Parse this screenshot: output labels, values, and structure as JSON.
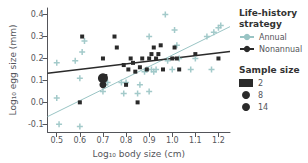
{
  "chart_data": {
    "type": "scatter",
    "xlabel": "Log₁₀ body size (cm)",
    "ylabel": "Log₁₀ egg size (mm)",
    "xlim": [
      0.46,
      1.25
    ],
    "ylim": [
      -0.135,
      0.43
    ],
    "xticks": [
      0.5,
      0.6,
      0.7,
      0.8,
      0.9,
      {
        "value": 1.0,
        "label": "1.0"
      },
      1.1,
      1.2
    ],
    "yticks": [
      -0.1,
      {
        "value": 0.0,
        "label": "0.0"
      },
      0.1,
      0.2,
      0.3,
      0.4
    ],
    "grid": false,
    "legends": [
      {
        "title": "Life-history\nstrategy",
        "entries": [
          "Annual",
          "Nonannual"
        ]
      },
      {
        "title": "Sample size",
        "entries": [
          "2",
          "8",
          "14"
        ]
      }
    ],
    "series": [
      {
        "name": "Annual",
        "type": "line",
        "color": "#99c4c4",
        "x": [
          0.46,
          1.25
        ],
        "values": [
          -0.065,
          0.345
        ]
      },
      {
        "name": "Nonannual",
        "type": "line",
        "color": "#2a2a2a",
        "x": [
          0.46,
          1.25
        ],
        "values": [
          0.133,
          0.232
        ]
      },
      {
        "type": "scatter",
        "color": "#99c4c4",
        "marker": "plus",
        "points": [
          [
            0.5,
            0.02
          ],
          [
            0.5,
            0.18
          ],
          [
            0.51,
            -0.1
          ],
          [
            0.58,
            0.19
          ],
          [
            0.6,
            -0.11
          ],
          [
            0.6,
            0.11
          ],
          [
            0.61,
            0.23
          ],
          [
            0.62,
            0.28
          ],
          [
            0.7,
            0.05
          ],
          [
            0.71,
            0.08
          ],
          [
            0.72,
            0.09
          ],
          [
            0.78,
            0.09
          ],
          [
            0.79,
            0.04
          ],
          [
            0.8,
            0.09
          ],
          [
            0.85,
            0.04
          ],
          [
            0.86,
            0.08
          ],
          [
            0.88,
            0.14
          ],
          [
            0.89,
            0.15
          ],
          [
            0.9,
            0.05
          ],
          [
            0.9,
            0.3
          ],
          [
            0.91,
            0.15
          ],
          [
            0.92,
            0.14
          ],
          [
            0.93,
            0.15
          ],
          [
            0.98,
            0.19
          ],
          [
            1.0,
            0.15
          ],
          [
            1.01,
            0.33
          ],
          [
            1.02,
            0.26
          ],
          [
            1.03,
            0.2
          ],
          [
            1.08,
            0.15
          ],
          [
            1.1,
            0.2
          ],
          [
            1.18,
            0.32
          ],
          [
            1.2,
            0.34
          ],
          [
            1.21,
            0.35
          ],
          [
            0.97,
            0.4
          ],
          [
            1.15,
            0.3
          ],
          [
            1.17,
            0.15
          ]
        ]
      },
      {
        "name": "2",
        "type": "scatter",
        "color": "#2a2a2a",
        "marker": "square",
        "points": [
          [
            0.6,
            0.0
          ],
          [
            0.61,
            0.3
          ],
          [
            0.7,
            0.2
          ],
          [
            0.71,
            0.12
          ],
          [
            0.75,
            0.3
          ],
          [
            0.76,
            0.25
          ],
          [
            0.79,
            0.17
          ],
          [
            0.8,
            0.08
          ],
          [
            0.81,
            0.15
          ],
          [
            0.82,
            0.2
          ],
          [
            0.83,
            0.18
          ],
          [
            0.84,
            0.14
          ],
          [
            0.85,
            0.0
          ],
          [
            0.86,
            0.16
          ],
          [
            0.87,
            0.2
          ],
          [
            0.89,
            0.15
          ],
          [
            0.9,
            0.2
          ],
          [
            0.91,
            0.22
          ],
          [
            0.92,
            0.25
          ],
          [
            0.93,
            0.2
          ],
          [
            0.94,
            0.22
          ],
          [
            0.95,
            0.26
          ],
          [
            0.96,
            0.15
          ],
          [
            1.0,
            0.2
          ],
          [
            1.01,
            0.25
          ],
          [
            1.02,
            0.2
          ],
          [
            1.03,
            0.15
          ],
          [
            1.1,
            0.22
          ],
          [
            1.2,
            0.2
          ]
        ]
      },
      {
        "name": "8",
        "type": "scatter",
        "color": "#2a2a2a",
        "marker": "circle",
        "points": [
          [
            0.7,
            0.08
          ]
        ]
      },
      {
        "name": "14",
        "type": "scatter",
        "color": "#2a2a2a",
        "marker": "circle",
        "points": [
          [
            0.7,
            0.11
          ]
        ]
      }
    ]
  }
}
